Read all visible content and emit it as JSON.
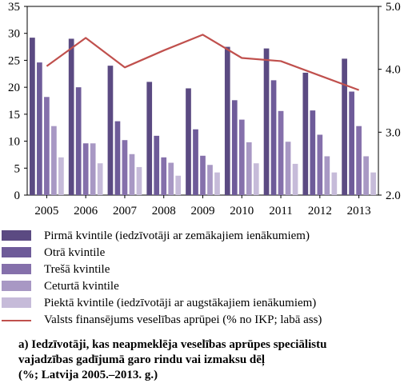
{
  "chart_data": {
    "type": "bar",
    "categories": [
      "2005",
      "2006",
      "2007",
      "2008",
      "2009",
      "2010",
      "2011",
      "2012",
      "2013"
    ],
    "series": [
      {
        "name": "Pirmā kvintile (iedzīvotāji ar zemākajiem ienākumiem)",
        "color": "#5b4a82",
        "values": [
          29.2,
          29.0,
          24.0,
          21.0,
          19.8,
          27.5,
          27.2,
          22.7,
          25.3
        ]
      },
      {
        "name": "Otrā kvintile",
        "color": "#6e5b99",
        "values": [
          24.6,
          20.0,
          13.7,
          11.0,
          12.2,
          17.6,
          21.3,
          15.7,
          19.2
        ]
      },
      {
        "name": "Trešā kvintile",
        "color": "#8570ab",
        "values": [
          18.2,
          9.6,
          10.2,
          7.0,
          7.3,
          14.0,
          15.6,
          11.2,
          12.8
        ]
      },
      {
        "name": "Ceturtā kvintile",
        "color": "#a898c4",
        "values": [
          12.8,
          9.6,
          7.6,
          6.0,
          5.6,
          9.8,
          9.9,
          7.2,
          7.2
        ]
      },
      {
        "name": "Piektā kvintile (iedzīvotāji ar augstākajiem ienākumiem)",
        "color": "#c6bbd9",
        "values": [
          7.0,
          5.9,
          5.2,
          3.6,
          4.2,
          5.9,
          5.8,
          4.2,
          4.2
        ]
      }
    ],
    "line_series": {
      "name": "Valsts finansējums veselības aprūpei (% no IKP; labā ass)",
      "color": "#c0504d",
      "axis": "right",
      "values": [
        4.05,
        4.5,
        4.03,
        4.3,
        4.55,
        4.18,
        4.13,
        3.9,
        3.67
      ]
    },
    "ylim": [
      0,
      35
    ],
    "yticks": [
      "0",
      "5",
      "10",
      "15",
      "20",
      "25",
      "30",
      "35"
    ],
    "y2lim": [
      2.0,
      5.0
    ],
    "y2ticks": [
      "2.0",
      "3.0",
      "4.0",
      "5.0"
    ],
    "grid": false,
    "legend": "bottom"
  },
  "caption": {
    "line1": "a) Iedzīvotāji, kas neapmeklēja veselības aprūpes speciālistu",
    "line2": "vajadzības gadījumā garo rindu vai izmaksu dēļ",
    "line3": "(%; Latvija 2005.–2013. g.)"
  }
}
